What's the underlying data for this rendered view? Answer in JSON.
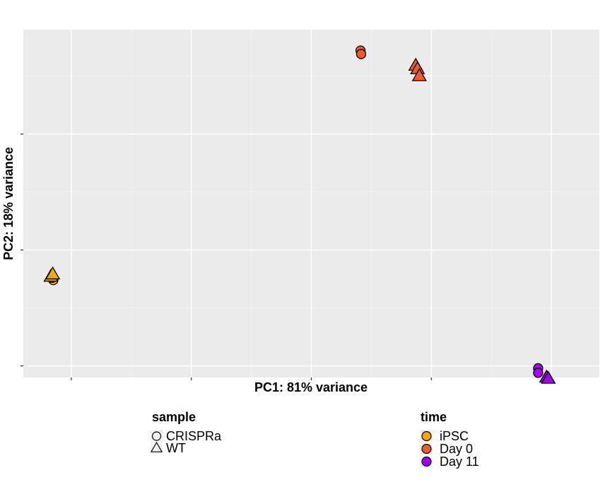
{
  "chart_data": {
    "type": "scatter",
    "title": "",
    "xlabel": "PC1: 81% variance",
    "ylabel": "PC2: 18% variance",
    "xlim": [
      -48,
      48
    ],
    "ylim": [
      -9,
      21
    ],
    "x_major_ticks": [
      -40,
      -20,
      0,
      20,
      40
    ],
    "y_major_ticks": [
      -8,
      2,
      12
    ],
    "tick_labels_shown": false,
    "grid": true,
    "panel_background": "#ebebeb",
    "shape_legend": {
      "title": "sample",
      "entries": [
        {
          "label": "CRISPRa",
          "shape": "circle"
        },
        {
          "label": "WT",
          "shape": "triangle"
        }
      ]
    },
    "color_legend": {
      "title": "time",
      "entries": [
        {
          "label": "iPSC",
          "color": "#f5a800"
        },
        {
          "label": "Day 0",
          "color": "#f05a2e"
        },
        {
          "label": "Day  11",
          "color": "#a400f0"
        }
      ]
    },
    "points": [
      {
        "x": -43.0,
        "y": -0.6,
        "sample": "CRISPRa",
        "time": "iPSC"
      },
      {
        "x": -43.2,
        "y": -0.4,
        "sample": "CRISPRa",
        "time": "iPSC"
      },
      {
        "x": -43.4,
        "y": -0.3,
        "sample": "WT",
        "time": "iPSC"
      },
      {
        "x": -43.1,
        "y": -0.1,
        "sample": "WT",
        "time": "iPSC"
      },
      {
        "x": 8.2,
        "y": 19.2,
        "sample": "CRISPRa",
        "time": "Day 0"
      },
      {
        "x": 8.3,
        "y": 18.9,
        "sample": "CRISPRa",
        "time": "Day 0"
      },
      {
        "x": 17.4,
        "y": 17.9,
        "sample": "WT",
        "time": "Day 0"
      },
      {
        "x": 17.7,
        "y": 17.6,
        "sample": "WT",
        "time": "Day 0"
      },
      {
        "x": 18.0,
        "y": 17.0,
        "sample": "WT",
        "time": "Day 0"
      },
      {
        "x": 37.8,
        "y": -8.2,
        "sample": "CRISPRa",
        "time": "Day  11"
      },
      {
        "x": 37.8,
        "y": -8.6,
        "sample": "CRISPRa",
        "time": "Day  11"
      },
      {
        "x": 39.2,
        "y": -9.0,
        "sample": "WT",
        "time": "Day  11"
      },
      {
        "x": 39.5,
        "y": -9.1,
        "sample": "WT",
        "time": "Day  11"
      }
    ]
  }
}
